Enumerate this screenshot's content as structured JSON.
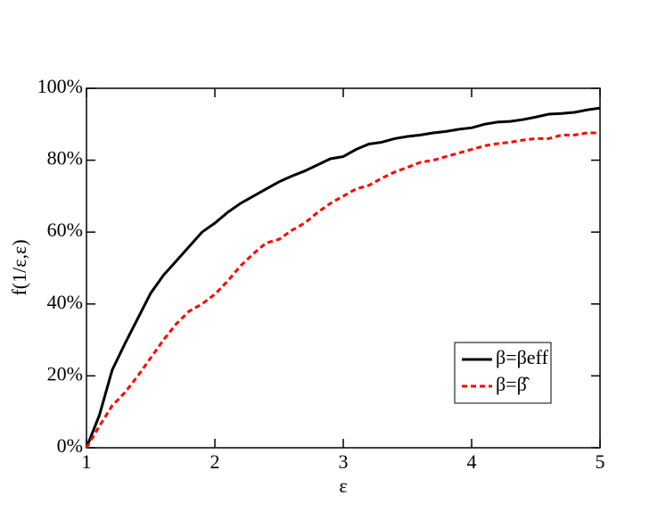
{
  "chart_data": {
    "type": "line",
    "xlabel": "ε",
    "ylabel": "f(1/ε,ε)",
    "x": [
      1,
      1.1,
      1.2,
      1.3,
      1.4,
      1.5,
      1.6,
      1.7,
      1.8,
      1.9,
      2,
      2.1,
      2.2,
      2.3,
      2.4,
      2.5,
      2.6,
      2.7,
      2.8,
      2.9,
      3,
      3.1,
      3.2,
      3.3,
      3.4,
      3.5,
      3.6,
      3.7,
      3.8,
      3.9,
      4,
      4.1,
      4.2,
      4.3,
      4.4,
      4.5,
      4.6,
      4.7,
      4.8,
      4.9,
      5
    ],
    "series": [
      {
        "name": "β=βeff",
        "color": "#000000",
        "dash": false,
        "values": [
          0,
          9,
          21.6,
          29,
          36,
          43,
          48,
          52,
          56,
          60,
          62.5,
          65.5,
          68,
          70,
          72,
          74,
          75.6,
          77,
          78.7,
          80.4,
          81,
          83,
          84.5,
          85,
          86,
          86.6,
          87,
          87.6,
          88,
          88.6,
          89,
          90,
          90.6,
          90.8,
          91.3,
          92,
          92.8,
          93,
          93.3,
          94,
          94.5
        ]
      },
      {
        "name": "β=β̂",
        "color": "#ff0000",
        "dash": true,
        "values": [
          0,
          6,
          11.7,
          15.4,
          20,
          25,
          30,
          34.5,
          38,
          40,
          42.7,
          46.4,
          50.6,
          54,
          57,
          58,
          60.5,
          62.5,
          65.5,
          68,
          70,
          72,
          73,
          75,
          76.7,
          78,
          79.4,
          80,
          81,
          82,
          83,
          84,
          84.6,
          85,
          85.6,
          86,
          86,
          87,
          87,
          87.6,
          87.6
        ]
      }
    ],
    "xlim": [
      1,
      5
    ],
    "xticks": [
      1,
      2,
      3,
      4,
      5
    ],
    "ylim": [
      0,
      100
    ],
    "yticks": [
      {
        "value": 0,
        "label": "0%"
      },
      {
        "value": 20,
        "label": "20%"
      },
      {
        "value": 40,
        "label": "40%"
      },
      {
        "value": 60,
        "label": "60%"
      },
      {
        "value": 80,
        "label": "80%"
      },
      {
        "value": 100,
        "label": "100%"
      }
    ],
    "legend": "lower-right"
  }
}
